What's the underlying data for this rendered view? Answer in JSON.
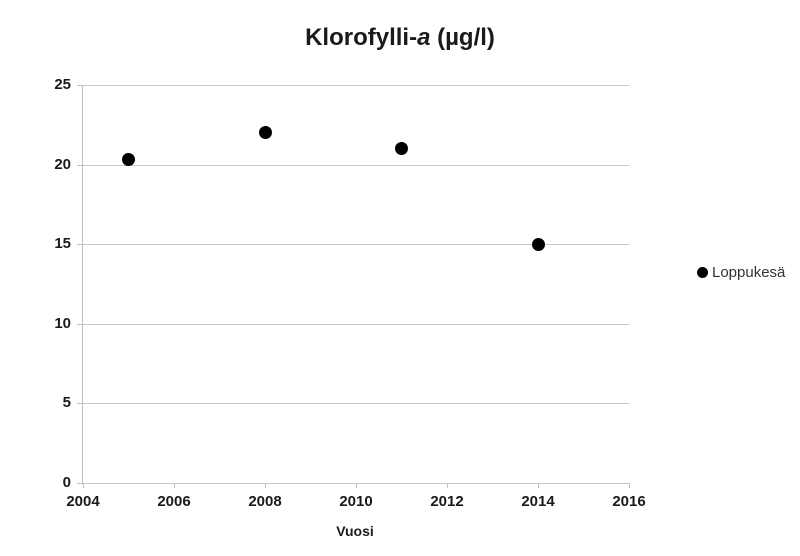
{
  "title": {
    "prefix": "Klorofylli-",
    "italic": "a",
    "suffix": "  (µg/l)"
  },
  "legend": {
    "marker": "circle-icon",
    "marker_color": "#000000",
    "label": "Loppukesä",
    "position": "right"
  },
  "chart_data": {
    "type": "scatter",
    "title": "Klorofylli-a (µg/l)",
    "xlabel": "Vuosi",
    "ylabel": "",
    "xlim": [
      2004,
      2016
    ],
    "ylim": [
      0,
      25
    ],
    "xticks": [
      2004,
      2006,
      2008,
      2010,
      2012,
      2014,
      2016
    ],
    "yticks": [
      0,
      5,
      10,
      15,
      20,
      25
    ],
    "grid": "horizontal",
    "legend_position": "right",
    "series": [
      {
        "name": "Loppukesä",
        "marker": "circle",
        "color": "#000000",
        "points": [
          {
            "x": 2005,
            "y": 20.3
          },
          {
            "x": 2008,
            "y": 22
          },
          {
            "x": 2011,
            "y": 21
          },
          {
            "x": 2014,
            "y": 15
          }
        ]
      }
    ]
  },
  "colors": {
    "background": "#ffffff",
    "gridline": "#c9c9c9",
    "axis": "#bfbfbf",
    "text": "#1a1a1a",
    "point": "#000000"
  }
}
